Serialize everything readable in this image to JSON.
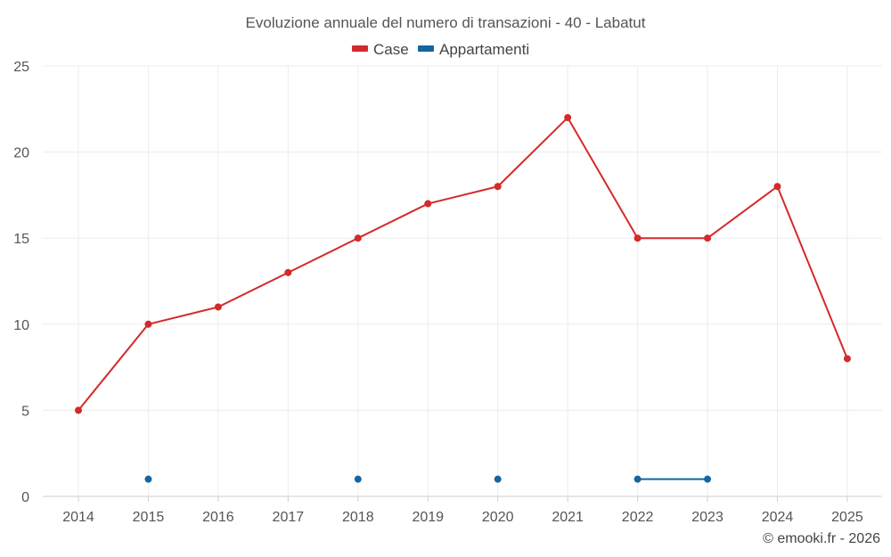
{
  "chart_data": {
    "type": "line",
    "title": "Evoluzione annuale del numero di transazioni - 40 - Labatut",
    "categories": [
      "2014",
      "2015",
      "2016",
      "2017",
      "2018",
      "2019",
      "2020",
      "2021",
      "2022",
      "2023",
      "2024",
      "2025"
    ],
    "ylim": [
      0,
      25
    ],
    "yticks": [
      0,
      5,
      10,
      15,
      20,
      25
    ],
    "grid": true,
    "legend_position": "top-center",
    "series": [
      {
        "name": "Case",
        "color": "#d42a2a",
        "values": [
          5,
          10,
          11,
          13,
          15,
          17,
          18,
          22,
          15,
          15,
          18,
          8
        ]
      },
      {
        "name": "Appartamenti",
        "color": "#1565a0",
        "values": [
          null,
          1,
          null,
          null,
          1,
          null,
          1,
          null,
          1,
          1,
          null,
          null
        ]
      }
    ],
    "xlabel": "",
    "ylabel": ""
  },
  "credit": "© emooki.fr - 2026"
}
